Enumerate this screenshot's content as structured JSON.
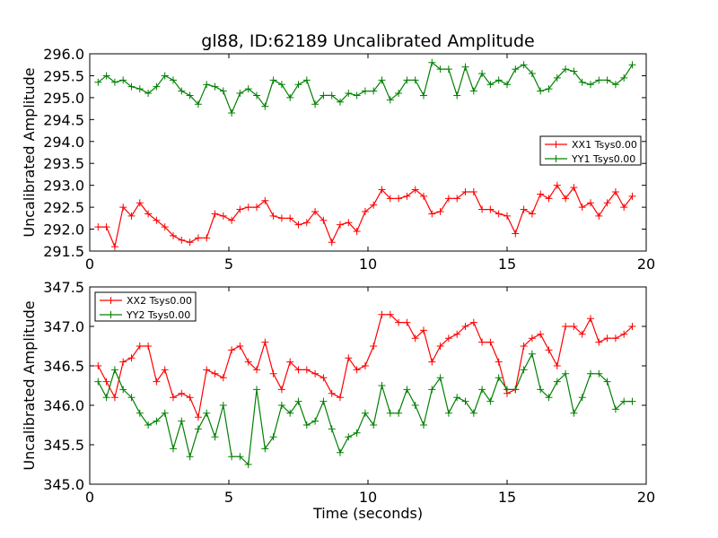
{
  "figure": {
    "title": "gl88, ID:62189 Uncalibrated Amplitude",
    "xlabel": "Time (seconds)"
  },
  "chart_data": [
    {
      "type": "line",
      "title": "gl88, ID:62189 Uncalibrated Amplitude",
      "xlabel": "",
      "ylabel": "Uncalibrated Amplitude",
      "xlim": [
        0,
        20
      ],
      "ylim": [
        291.5,
        296.0
      ],
      "xticks": [
        0,
        5,
        10,
        15,
        20
      ],
      "yticks": [
        291.5,
        292.0,
        292.5,
        293.0,
        293.5,
        294.0,
        294.5,
        295.0,
        295.5,
        296.0
      ],
      "legend_position": "center-right",
      "x": [
        0.3,
        0.6,
        0.9,
        1.2,
        1.5,
        1.8,
        2.1,
        2.4,
        2.7,
        3.0,
        3.3,
        3.6,
        3.9,
        4.2,
        4.5,
        4.8,
        5.1,
        5.4,
        5.7,
        6.0,
        6.3,
        6.6,
        6.9,
        7.2,
        7.5,
        7.8,
        8.1,
        8.4,
        8.7,
        9.0,
        9.3,
        9.6,
        9.9,
        10.2,
        10.5,
        10.8,
        11.1,
        11.4,
        11.7,
        12.0,
        12.3,
        12.6,
        12.9,
        13.2,
        13.5,
        13.8,
        14.1,
        14.4,
        14.7,
        15.0,
        15.3,
        15.6,
        15.9,
        16.2,
        16.5,
        16.8,
        17.1,
        17.4,
        17.7,
        18.0,
        18.3,
        18.6,
        18.9,
        19.2,
        19.5
      ],
      "series": [
        {
          "name": "XX1 Tsys0.00",
          "color": "#ff0000",
          "values": [
            292.05,
            292.05,
            291.6,
            292.5,
            292.3,
            292.6,
            292.35,
            292.2,
            292.05,
            291.85,
            291.75,
            291.7,
            291.8,
            291.8,
            292.35,
            292.3,
            292.2,
            292.45,
            292.5,
            292.5,
            292.65,
            292.3,
            292.25,
            292.25,
            292.1,
            292.15,
            292.4,
            292.2,
            291.7,
            292.1,
            292.15,
            291.95,
            292.4,
            292.55,
            292.9,
            292.7,
            292.7,
            292.75,
            292.9,
            292.75,
            292.35,
            292.4,
            292.7,
            292.7,
            292.85,
            292.85,
            292.45,
            292.45,
            292.35,
            292.3,
            291.9,
            292.45,
            292.35,
            292.8,
            292.7,
            293.0,
            292.7,
            292.95,
            292.5,
            292.6,
            292.3,
            292.6,
            292.85,
            292.5,
            292.75
          ]
        },
        {
          "name": "YY1 Tsys0.00",
          "color": "#008000",
          "values": [
            295.35,
            295.5,
            295.35,
            295.4,
            295.25,
            295.2,
            295.1,
            295.25,
            295.5,
            295.4,
            295.15,
            295.05,
            294.85,
            295.3,
            295.25,
            295.15,
            294.65,
            295.1,
            295.2,
            295.05,
            294.8,
            295.4,
            295.3,
            295.0,
            295.3,
            295.4,
            294.85,
            295.05,
            295.05,
            294.9,
            295.1,
            295.05,
            295.15,
            295.15,
            295.4,
            294.95,
            295.1,
            295.4,
            295.4,
            295.05,
            295.8,
            295.65,
            295.65,
            295.05,
            295.7,
            295.15,
            295.55,
            295.3,
            295.4,
            295.3,
            295.65,
            295.75,
            295.55,
            295.15,
            295.2,
            295.45,
            295.65,
            295.6,
            295.35,
            295.3,
            295.4,
            295.4,
            295.3,
            295.45,
            295.75
          ]
        }
      ]
    },
    {
      "type": "line",
      "title": "",
      "xlabel": "Time (seconds)",
      "ylabel": "Uncalibrated Amplitude",
      "xlim": [
        0,
        20
      ],
      "ylim": [
        345.0,
        347.5
      ],
      "xticks": [
        0,
        5,
        10,
        15,
        20
      ],
      "yticks": [
        345.0,
        345.5,
        346.0,
        346.5,
        347.0,
        347.5
      ],
      "legend_position": "upper-left",
      "x": [
        0.3,
        0.6,
        0.9,
        1.2,
        1.5,
        1.8,
        2.1,
        2.4,
        2.7,
        3.0,
        3.3,
        3.6,
        3.9,
        4.2,
        4.5,
        4.8,
        5.1,
        5.4,
        5.7,
        6.0,
        6.3,
        6.6,
        6.9,
        7.2,
        7.5,
        7.8,
        8.1,
        8.4,
        8.7,
        9.0,
        9.3,
        9.6,
        9.9,
        10.2,
        10.5,
        10.8,
        11.1,
        11.4,
        11.7,
        12.0,
        12.3,
        12.6,
        12.9,
        13.2,
        13.5,
        13.8,
        14.1,
        14.4,
        14.7,
        15.0,
        15.3,
        15.6,
        15.9,
        16.2,
        16.5,
        16.8,
        17.1,
        17.4,
        17.7,
        18.0,
        18.3,
        18.6,
        18.9,
        19.2,
        19.5
      ],
      "series": [
        {
          "name": "XX2 Tsys0.00",
          "color": "#ff0000",
          "values": [
            346.5,
            346.3,
            346.1,
            346.55,
            346.6,
            346.75,
            346.75,
            346.3,
            346.45,
            346.1,
            346.15,
            346.1,
            345.85,
            346.45,
            346.4,
            346.35,
            346.7,
            346.75,
            346.55,
            346.45,
            346.8,
            346.4,
            346.2,
            346.55,
            346.45,
            346.45,
            346.4,
            346.35,
            346.15,
            346.1,
            346.6,
            346.45,
            346.5,
            346.75,
            347.15,
            347.15,
            347.05,
            347.05,
            346.85,
            346.95,
            346.55,
            346.75,
            346.85,
            346.9,
            347.0,
            347.05,
            346.8,
            346.8,
            346.55,
            346.15,
            346.2,
            346.75,
            346.85,
            346.9,
            346.7,
            346.5,
            347.0,
            347.0,
            346.9,
            347.1,
            346.8,
            346.85,
            346.85,
            346.9,
            347.0
          ]
        },
        {
          "name": "YY2 Tsys0.00",
          "color": "#008000",
          "values": [
            346.3,
            346.1,
            346.45,
            346.2,
            346.1,
            345.9,
            345.75,
            345.8,
            345.9,
            345.45,
            345.8,
            345.35,
            345.7,
            345.9,
            345.6,
            346.0,
            345.35,
            345.35,
            345.25,
            346.2,
            345.45,
            345.6,
            346.0,
            345.9,
            346.05,
            345.75,
            345.8,
            346.05,
            345.7,
            345.4,
            345.6,
            345.65,
            345.9,
            345.75,
            346.25,
            345.9,
            345.9,
            346.2,
            346.0,
            345.75,
            346.2,
            346.35,
            345.9,
            346.1,
            346.05,
            345.9,
            346.2,
            346.05,
            346.35,
            346.2,
            346.2,
            346.45,
            346.65,
            346.2,
            346.1,
            346.3,
            346.4,
            345.9,
            346.1,
            346.4,
            346.4,
            346.3,
            345.95,
            346.05,
            346.05
          ]
        }
      ]
    }
  ]
}
